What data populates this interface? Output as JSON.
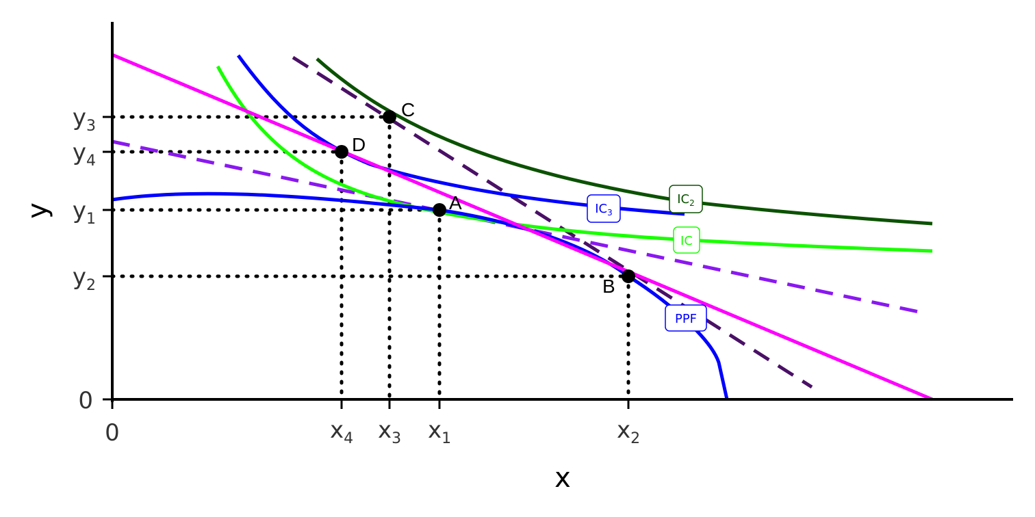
{
  "axes": {
    "x_title": "x",
    "y_title": "y",
    "x_origin": "0",
    "y_origin": "0"
  },
  "x_ticks": [
    {
      "base": "x",
      "sub": "4"
    },
    {
      "base": "x",
      "sub": "3"
    },
    {
      "base": "x",
      "sub": "1"
    },
    {
      "base": "x",
      "sub": "2"
    }
  ],
  "y_ticks": [
    {
      "base": "y",
      "sub": "3"
    },
    {
      "base": "y",
      "sub": "4"
    },
    {
      "base": "y",
      "sub": "1"
    },
    {
      "base": "y",
      "sub": "2"
    }
  ],
  "points": [
    {
      "label": "A",
      "x": 4.0,
      "y": 4.6
    },
    {
      "label": "B",
      "x": 6.3,
      "y": 3.0
    },
    {
      "label": "C",
      "x": 3.4,
      "y": 6.9
    },
    {
      "label": "D",
      "x": 2.8,
      "y": 6.05
    }
  ],
  "curve_labels": {
    "ic3": {
      "base": "IC",
      "sub": "3"
    },
    "ic2": {
      "base": "IC",
      "sub": "2"
    },
    "ic": {
      "base": "IC",
      "sub": ""
    },
    "ppf": {
      "base": "PPF",
      "sub": ""
    }
  },
  "colors": {
    "ppf": "#0000ff",
    "ic": "#19ff00",
    "ic2": "#0b5200",
    "ic3": "#0000ff",
    "budget": "#ff00ff",
    "dash_purple": "#8a18f0",
    "dash_dark": "#4a1066",
    "guide": "#000000"
  }
}
